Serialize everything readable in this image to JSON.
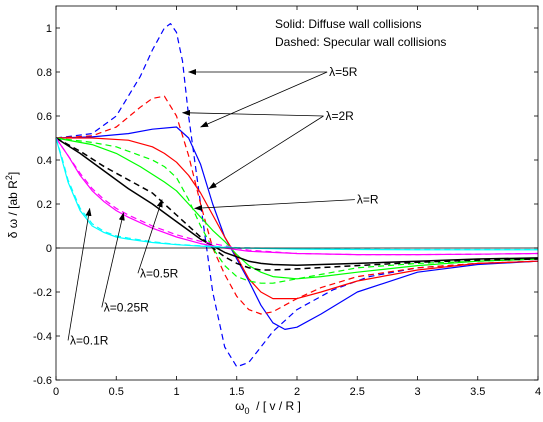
{
  "chart_data": {
    "type": "line",
    "xlabel_main": "ω",
    "xlabel_sub": "0",
    "xlabel_rest": "  / [ v / R ]",
    "ylabel_main": "δ ω / [ab R",
    "ylabel_sup": "2",
    "ylabel_end": "]",
    "xlim": [
      0,
      4
    ],
    "ylim": [
      -0.6,
      1.1
    ],
    "xticks": [
      "0",
      "0.5",
      "1",
      "1.5",
      "2",
      "2.5",
      "3",
      "3.5",
      "4"
    ],
    "yticks": [
      "-0.6",
      "-0.4",
      "-0.2",
      "0",
      "0.2",
      "0.4",
      "0.6",
      "0.8",
      "1"
    ],
    "xtick_values": [
      0,
      0.5,
      1,
      1.5,
      2,
      2.5,
      3,
      3.5,
      4
    ],
    "ytick_values": [
      -0.6,
      -0.4,
      -0.2,
      0,
      0.2,
      0.4,
      0.6,
      0.8,
      1
    ],
    "legend": {
      "line1": "Solid: Diffuse wall collisions",
      "line2": "Dashed: Specular wall collisions",
      "placement": "top-right"
    },
    "series": [
      {
        "color": "#0000ff",
        "style": "solid",
        "x": [
          0,
          0.3,
          0.6,
          0.8,
          1.0,
          1.1,
          1.2,
          1.3,
          1.4,
          1.5,
          1.6,
          1.7,
          1.8,
          1.9,
          2.0,
          2.2,
          2.5,
          3.0,
          3.5,
          4.0
        ],
        "y": [
          0.5,
          0.505,
          0.52,
          0.54,
          0.55,
          0.5,
          0.38,
          0.2,
          0.05,
          -0.05,
          -0.15,
          -0.26,
          -0.34,
          -0.37,
          -0.36,
          -0.3,
          -0.2,
          -0.11,
          -0.075,
          -0.06
        ]
      },
      {
        "color": "#0000ff",
        "style": "dashed",
        "x": [
          0,
          0.3,
          0.5,
          0.7,
          0.8,
          0.9,
          0.95,
          1.0,
          1.05,
          1.1,
          1.2,
          1.3,
          1.4,
          1.5,
          1.6,
          1.7,
          1.8,
          2.0,
          2.3,
          2.6,
          3.0,
          3.5,
          4.0
        ],
        "y": [
          0.5,
          0.52,
          0.6,
          0.78,
          0.9,
          1.0,
          1.02,
          0.98,
          0.85,
          0.6,
          0.2,
          -0.2,
          -0.45,
          -0.54,
          -0.52,
          -0.45,
          -0.38,
          -0.28,
          -0.19,
          -0.13,
          -0.09,
          -0.07,
          -0.06
        ]
      },
      {
        "color": "#ff0000",
        "style": "solid",
        "x": [
          0,
          0.3,
          0.6,
          0.8,
          0.9,
          1.0,
          1.1,
          1.2,
          1.3,
          1.4,
          1.5,
          1.6,
          1.7,
          1.8,
          2.0,
          2.2,
          2.5,
          3.0,
          3.5,
          4.0
        ],
        "y": [
          0.5,
          0.5,
          0.49,
          0.46,
          0.43,
          0.39,
          0.33,
          0.25,
          0.15,
          0.05,
          -0.04,
          -0.14,
          -0.2,
          -0.23,
          -0.23,
          -0.2,
          -0.15,
          -0.1,
          -0.07,
          -0.06
        ]
      },
      {
        "color": "#ff0000",
        "style": "dashed",
        "x": [
          0,
          0.3,
          0.5,
          0.7,
          0.8,
          0.9,
          1.0,
          1.1,
          1.2,
          1.3,
          1.4,
          1.5,
          1.6,
          1.7,
          1.8,
          1.9,
          2.0,
          2.2,
          2.5,
          3.0,
          3.5,
          4.0
        ],
        "y": [
          0.5,
          0.51,
          0.55,
          0.64,
          0.68,
          0.69,
          0.6,
          0.42,
          0.2,
          0.0,
          -0.12,
          -0.22,
          -0.28,
          -0.3,
          -0.29,
          -0.26,
          -0.23,
          -0.18,
          -0.13,
          -0.09,
          -0.07,
          -0.06
        ]
      },
      {
        "color": "#00ff00",
        "style": "solid",
        "x": [
          0,
          0.3,
          0.5,
          0.7,
          0.9,
          1.0,
          1.1,
          1.2,
          1.3,
          1.4,
          1.5,
          1.6,
          1.7,
          1.8,
          2.0,
          2.2,
          2.5,
          3.0,
          3.5,
          4.0
        ],
        "y": [
          0.5,
          0.47,
          0.43,
          0.37,
          0.3,
          0.26,
          0.2,
          0.14,
          0.08,
          0.03,
          -0.03,
          -0.08,
          -0.11,
          -0.13,
          -0.14,
          -0.13,
          -0.11,
          -0.08,
          -0.06,
          -0.05
        ]
      },
      {
        "color": "#00ff00",
        "style": "dashed",
        "x": [
          0,
          0.3,
          0.5,
          0.7,
          0.8,
          0.9,
          1.0,
          1.1,
          1.2,
          1.3,
          1.4,
          1.5,
          1.6,
          1.7,
          1.8,
          2.0,
          2.2,
          2.5,
          3.0,
          3.5,
          4.0
        ],
        "y": [
          0.5,
          0.48,
          0.46,
          0.42,
          0.4,
          0.37,
          0.32,
          0.22,
          0.1,
          0.0,
          -0.08,
          -0.13,
          -0.15,
          -0.16,
          -0.16,
          -0.14,
          -0.12,
          -0.09,
          -0.07,
          -0.06,
          -0.05
        ]
      },
      {
        "color": "#000000",
        "style": "solid",
        "x": [
          0,
          0.2,
          0.4,
          0.6,
          0.8,
          1.0,
          1.1,
          1.2,
          1.3,
          1.4,
          1.5,
          1.6,
          1.7,
          1.8,
          2.0,
          2.5,
          3.0,
          3.5,
          4.0
        ],
        "y": [
          0.5,
          0.43,
          0.35,
          0.27,
          0.2,
          0.12,
          0.08,
          0.04,
          0.01,
          -0.02,
          -0.04,
          -0.06,
          -0.07,
          -0.075,
          -0.078,
          -0.07,
          -0.06,
          -0.05,
          -0.045
        ]
      },
      {
        "color": "#000000",
        "style": "dashed",
        "x": [
          0,
          0.2,
          0.4,
          0.6,
          0.8,
          1.0,
          1.1,
          1.2,
          1.3,
          1.4,
          1.5,
          1.6,
          1.7,
          1.8,
          2.0,
          2.5,
          3.0,
          3.5,
          4.0
        ],
        "y": [
          0.5,
          0.44,
          0.37,
          0.31,
          0.25,
          0.15,
          0.1,
          0.05,
          0.0,
          -0.04,
          -0.07,
          -0.09,
          -0.1,
          -0.1,
          -0.095,
          -0.08,
          -0.065,
          -0.055,
          -0.05
        ]
      },
      {
        "color": "#ff00ff",
        "style": "solid",
        "x": [
          0,
          0.1,
          0.2,
          0.3,
          0.4,
          0.5,
          0.6,
          0.8,
          1.0,
          1.2,
          1.4,
          1.6,
          2.0,
          2.5,
          3.0,
          3.5,
          4.0
        ],
        "y": [
          0.5,
          0.42,
          0.33,
          0.26,
          0.21,
          0.17,
          0.14,
          0.09,
          0.05,
          0.02,
          0.0,
          -0.015,
          -0.025,
          -0.03,
          -0.03,
          -0.028,
          -0.025
        ]
      },
      {
        "color": "#ff00ff",
        "style": "dashed",
        "x": [
          0,
          0.1,
          0.2,
          0.3,
          0.4,
          0.5,
          0.6,
          0.8,
          1.0,
          1.2,
          1.4,
          1.6,
          2.0,
          2.5,
          3.0,
          3.5,
          4.0
        ],
        "y": [
          0.5,
          0.42,
          0.34,
          0.27,
          0.22,
          0.18,
          0.15,
          0.1,
          0.06,
          0.03,
          0.01,
          -0.01,
          -0.025,
          -0.03,
          -0.03,
          -0.028,
          -0.025
        ]
      },
      {
        "color": "#00ffff",
        "style": "solid",
        "x": [
          0,
          0.05,
          0.1,
          0.2,
          0.3,
          0.4,
          0.5,
          0.6,
          0.8,
          1.0,
          1.2,
          1.5,
          2.0,
          3.0,
          4.0
        ],
        "y": [
          0.5,
          0.4,
          0.3,
          0.17,
          0.1,
          0.07,
          0.05,
          0.04,
          0.025,
          0.015,
          0.008,
          0.0,
          -0.005,
          -0.008,
          -0.008
        ]
      },
      {
        "color": "#00ffff",
        "style": "dashed",
        "x": [
          0,
          0.05,
          0.1,
          0.2,
          0.3,
          0.4,
          0.5,
          0.6,
          0.8,
          1.0,
          1.2,
          1.5,
          2.0,
          3.0,
          4.0
        ],
        "y": [
          0.5,
          0.41,
          0.31,
          0.18,
          0.11,
          0.075,
          0.055,
          0.045,
          0.028,
          0.017,
          0.01,
          0.002,
          -0.004,
          -0.007,
          -0.007
        ]
      }
    ],
    "annotations": [
      {
        "label": "λ=5R",
        "tx": 2.25,
        "ty": 0.8,
        "arrows": [
          [
            1.1,
            0.8
          ],
          [
            1.2,
            0.55
          ]
        ]
      },
      {
        "label": "λ=2R",
        "tx": 2.22,
        "ty": 0.6,
        "arrows": [
          [
            1.05,
            0.615
          ],
          [
            1.27,
            0.27
          ]
        ]
      },
      {
        "label": "λ=R",
        "tx": 2.48,
        "ty": 0.22,
        "arrows": [
          [
            1.15,
            0.18
          ]
        ]
      },
      {
        "label": "λ=0.5R",
        "tx": 0.68,
        "ty": -0.115,
        "arrows": [
          [
            0.88,
            0.22
          ]
        ]
      },
      {
        "label": "λ=0.25R",
        "tx": 0.38,
        "ty": -0.27,
        "arrows": [
          [
            0.56,
            0.16
          ]
        ]
      },
      {
        "label": "λ=0.1R",
        "tx": 0.1,
        "ty": -0.42,
        "arrows": [
          [
            0.28,
            0.18
          ]
        ]
      }
    ]
  }
}
